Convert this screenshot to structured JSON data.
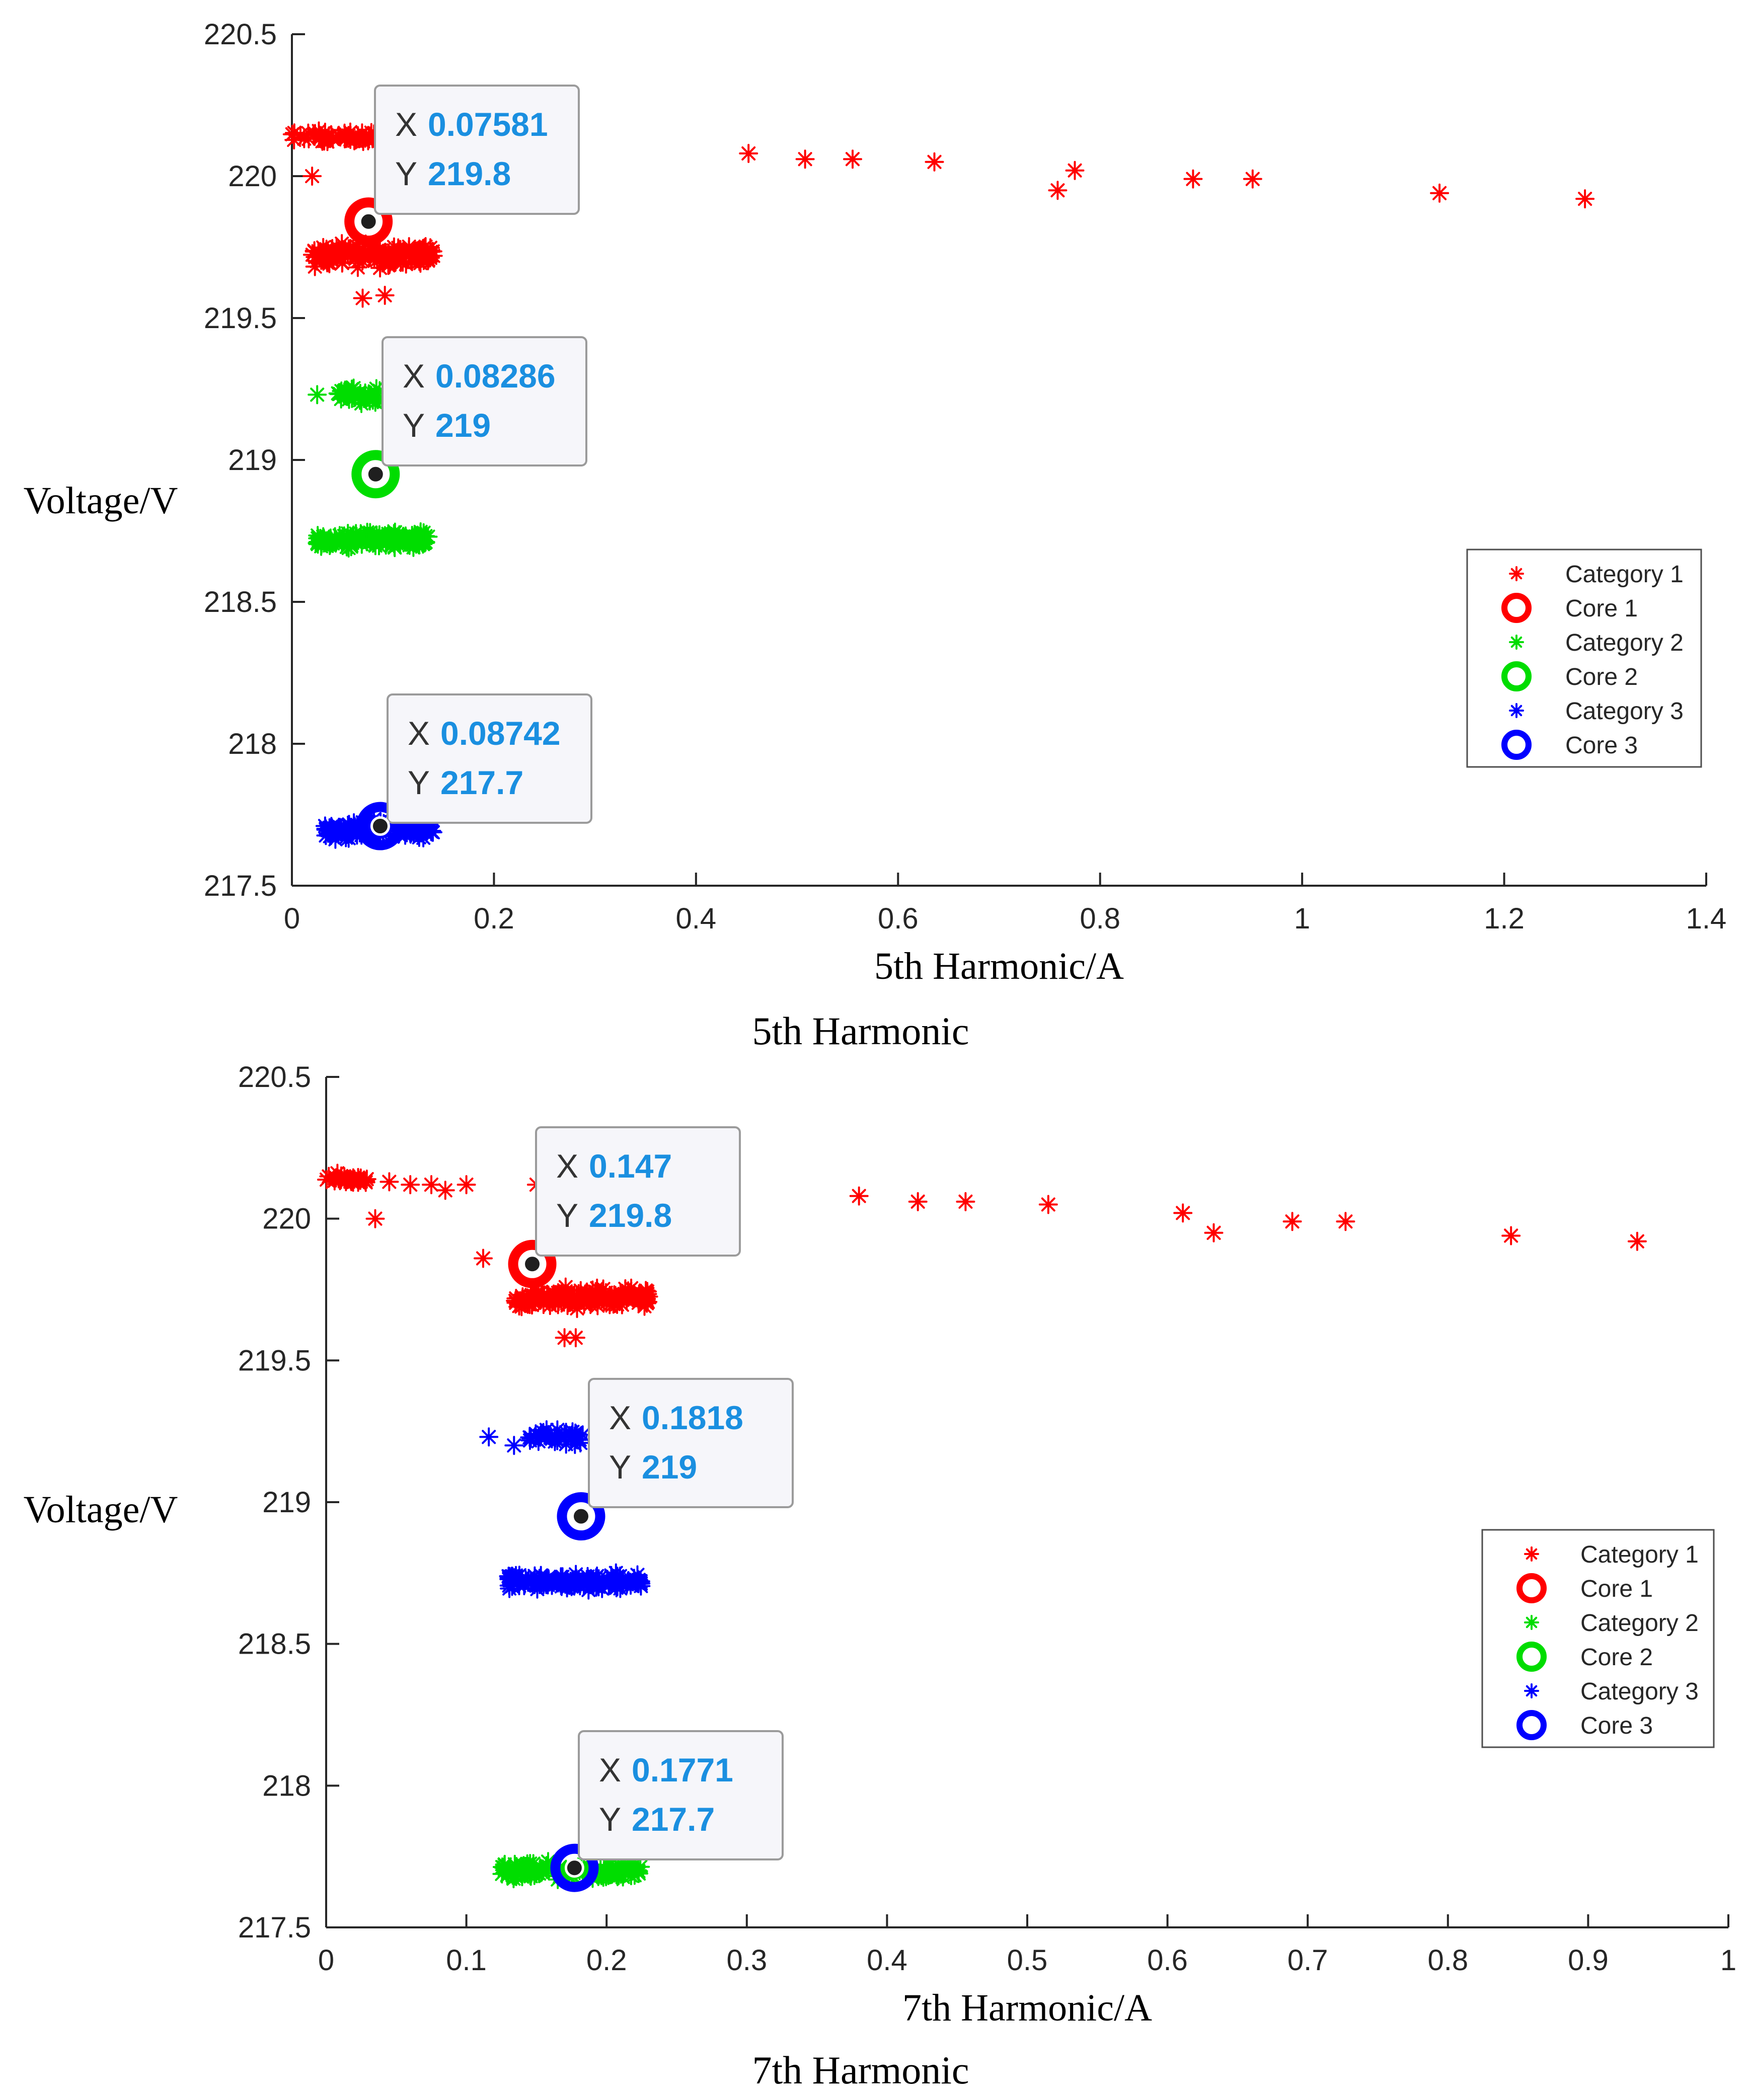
{
  "colors": {
    "category1": "#ff0000",
    "category2": "#00dd00",
    "category3": "#0000ff",
    "tip_value": "#1a8fe0",
    "axis": "#262626"
  },
  "chart_data": [
    {
      "type": "scatter",
      "caption": "5th Harmonic",
      "xlabel": "5th Harmonic/A",
      "ylabel": "Voltage/V",
      "xlim": [
        0,
        1.4
      ],
      "ylim": [
        217.5,
        220.5
      ],
      "xticks": [
        0,
        0.2,
        0.4,
        0.6,
        0.8,
        1,
        1.2,
        1.4
      ],
      "xtick_labels": [
        "0",
        "0.2",
        "0.4",
        "0.6",
        "0.8",
        "1",
        "1.2",
        "1.4"
      ],
      "yticks": [
        217.5,
        218,
        218.5,
        219,
        219.5,
        220,
        220.5
      ],
      "ytick_labels": [
        "217.5",
        "218",
        "218.5",
        "219",
        "219.5",
        "220",
        "220.5"
      ],
      "legend": {
        "position": "right",
        "entries": [
          "Category 1",
          "Core 1",
          "Category 2",
          "Core 2",
          "Category 3",
          "Core 3"
        ]
      },
      "series": [
        {
          "name": "Category 1",
          "color": "category1",
          "marker": "asterisk",
          "points": [
            [
              0.02,
              220.0
            ],
            [
              0.452,
              220.08
            ],
            [
              0.508,
              220.06
            ],
            [
              0.555,
              220.06
            ],
            [
              0.636,
              220.05
            ],
            [
              0.758,
              219.95
            ],
            [
              0.775,
              220.02
            ],
            [
              0.892,
              219.99
            ],
            [
              0.951,
              219.99
            ],
            [
              1.136,
              219.94
            ],
            [
              1.28,
              219.92
            ],
            [
              0.07,
              219.57
            ],
            [
              0.092,
              219.58
            ]
          ],
          "clusters": [
            {
              "x_range": [
                0.0,
                0.09
              ],
              "y_center": 220.14,
              "y_spread": 0.03,
              "count": 55
            },
            {
              "x_range": [
                0.02,
                0.14
              ],
              "y_center": 219.72,
              "y_spread": 0.05,
              "count": 150
            }
          ]
        },
        {
          "name": "Core 1",
          "color": "category1",
          "marker": "ring",
          "points": [
            [
              0.07581,
              219.84
            ]
          ]
        },
        {
          "name": "Category 2",
          "color": "category2",
          "marker": "asterisk",
          "points": [
            [
              0.025,
              219.23
            ]
          ],
          "clusters": [
            {
              "x_range": [
                0.045,
                0.09
              ],
              "y_center": 219.23,
              "y_spread": 0.04,
              "count": 45
            },
            {
              "x_range": [
                0.025,
                0.135
              ],
              "y_center": 218.72,
              "y_spread": 0.04,
              "count": 140
            }
          ]
        },
        {
          "name": "Core 2",
          "color": "category2",
          "marker": "ring",
          "points": [
            [
              0.08286,
              218.95
            ]
          ]
        },
        {
          "name": "Category 3",
          "color": "category3",
          "marker": "asterisk",
          "points": [],
          "clusters": [
            {
              "x_range": [
                0.03,
                0.14
              ],
              "y_center": 217.7,
              "y_spread": 0.04,
              "count": 140
            }
          ]
        },
        {
          "name": "Core 3",
          "color": "category3",
          "marker": "ring",
          "points": [
            [
              0.08742,
              217.71
            ]
          ]
        }
      ],
      "datatips": [
        {
          "x_label": "X",
          "x_value": "0.07581",
          "y_label": "Y",
          "y_value": "219.8",
          "anchor": [
            0.07581,
            219.84
          ]
        },
        {
          "x_label": "X",
          "x_value": "0.08286",
          "y_label": "Y",
          "y_value": "219",
          "anchor": [
            0.08286,
            218.95
          ]
        },
        {
          "x_label": "X",
          "x_value": "0.08742",
          "y_label": "Y",
          "y_value": "217.7",
          "anchor": [
            0.08742,
            217.71
          ]
        }
      ]
    },
    {
      "type": "scatter",
      "caption": "7th Harmonic",
      "xlabel": "7th Harmonic/A",
      "ylabel": "Voltage/V",
      "xlim": [
        0,
        1
      ],
      "ylim": [
        217.5,
        220.5
      ],
      "xticks": [
        0,
        0.1,
        0.2,
        0.3,
        0.4,
        0.5,
        0.6,
        0.7,
        0.8,
        0.9,
        1
      ],
      "xtick_labels": [
        "0",
        "0.1",
        "0.2",
        "0.3",
        "0.4",
        "0.5",
        "0.6",
        "0.7",
        "0.8",
        "0.9",
        "1"
      ],
      "yticks": [
        217.5,
        218,
        218.5,
        219,
        219.5,
        220,
        220.5
      ],
      "ytick_labels": [
        "217.5",
        "218",
        "218.5",
        "219",
        "219.5",
        "220",
        "220.5"
      ],
      "legend": {
        "position": "right",
        "entries": [
          "Category 1",
          "Core 1",
          "Category 2",
          "Core 2",
          "Category 3",
          "Core 3"
        ]
      },
      "series": [
        {
          "name": "Category 1",
          "color": "category1",
          "marker": "asterisk",
          "points": [
            [
              0.035,
              220.0
            ],
            [
              0.045,
              220.13
            ],
            [
              0.06,
              220.12
            ],
            [
              0.075,
              220.12
            ],
            [
              0.085,
              220.1
            ],
            [
              0.1,
              220.12
            ],
            [
              0.112,
              219.86
            ],
            [
              0.15,
              220.12
            ],
            [
              0.38,
              220.08
            ],
            [
              0.422,
              220.06
            ],
            [
              0.456,
              220.06
            ],
            [
              0.515,
              220.05
            ],
            [
              0.611,
              220.02
            ],
            [
              0.633,
              219.95
            ],
            [
              0.689,
              219.99
            ],
            [
              0.727,
              219.99
            ],
            [
              0.845,
              219.94
            ],
            [
              0.935,
              219.92
            ],
            [
              0.17,
              219.58
            ],
            [
              0.178,
              219.58
            ]
          ],
          "clusters": [
            {
              "x_range": [
                0.0,
                0.03
              ],
              "y_center": 220.14,
              "y_spread": 0.025,
              "count": 30
            },
            {
              "x_range": [
                0.135,
                0.23
              ],
              "y_center": 219.72,
              "y_spread": 0.05,
              "count": 150
            }
          ]
        },
        {
          "name": "Core 1",
          "color": "category1",
          "marker": "ring",
          "points": [
            [
              0.147,
              219.84
            ]
          ]
        },
        {
          "name": "Category 2",
          "color": "category2",
          "marker": "asterisk",
          "points": [],
          "clusters": [
            {
              "x_range": [
                0.125,
                0.225
              ],
              "y_center": 217.7,
              "y_spread": 0.04,
              "count": 140
            }
          ]
        },
        {
          "name": "Core 2",
          "color": "category2",
          "marker": "ring",
          "points": []
        },
        {
          "name": "Category 3",
          "color": "category3",
          "marker": "asterisk",
          "points": [
            [
              0.116,
              219.23
            ],
            [
              0.134,
              219.2
            ]
          ],
          "clusters": [
            {
              "x_range": [
                0.145,
                0.185
              ],
              "y_center": 219.23,
              "y_spread": 0.04,
              "count": 40
            },
            {
              "x_range": [
                0.13,
                0.225
              ],
              "y_center": 218.72,
              "y_spread": 0.04,
              "count": 140
            }
          ]
        },
        {
          "name": "Core 3",
          "color": "category3",
          "marker": "ring",
          "points": [
            [
              0.1818,
              218.95
            ],
            [
              0.1771,
              217.71
            ]
          ]
        }
      ],
      "datatips": [
        {
          "x_label": "X",
          "x_value": "0.147",
          "y_label": "Y",
          "y_value": "219.8",
          "anchor": [
            0.147,
            219.84
          ]
        },
        {
          "x_label": "X",
          "x_value": "0.1818",
          "y_label": "Y",
          "y_value": "219",
          "anchor": [
            0.1818,
            218.95
          ]
        },
        {
          "x_label": "X",
          "x_value": "0.1771",
          "y_label": "Y",
          "y_value": "217.7",
          "anchor": [
            0.1771,
            217.71
          ]
        }
      ]
    }
  ]
}
